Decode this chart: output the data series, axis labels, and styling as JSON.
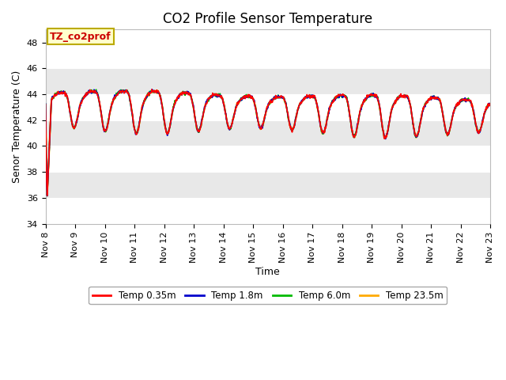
{
  "title": "CO2 Profile Sensor Temperature",
  "xlabel": "Time",
  "ylabel": "Senor Temperature (C)",
  "ylim": [
    34,
    49
  ],
  "yticks": [
    34,
    36,
    38,
    40,
    42,
    44,
    46,
    48
  ],
  "x_tick_labels": [
    "Nov 8",
    "Nov 9",
    "Nov 10",
    "Nov 11",
    "Nov 12",
    "Nov 13",
    "Nov 14",
    "Nov 15",
    "Nov 16",
    "Nov 17",
    "Nov 18",
    "Nov 19",
    "Nov 20",
    "Nov 21",
    "Nov 22",
    "Nov 23"
  ],
  "annotation_text": "TZ_co2prof",
  "annotation_bg": "#ffffcc",
  "annotation_border": "#bbaa00",
  "annotation_text_color": "#cc0000",
  "legend_entries": [
    "Temp 0.35m",
    "Temp 1.8m",
    "Temp 6.0m",
    "Temp 23.5m"
  ],
  "line_colors": [
    "#ff0000",
    "#0000cc",
    "#00bb00",
    "#ffaa00"
  ],
  "bg_color": "#ffffff",
  "plot_bg_color": "#f0f0f0",
  "band_white": "#ffffff",
  "band_gray": "#e8e8e8",
  "title_fontsize": 12,
  "axis_label_fontsize": 9,
  "tick_fontsize": 8
}
